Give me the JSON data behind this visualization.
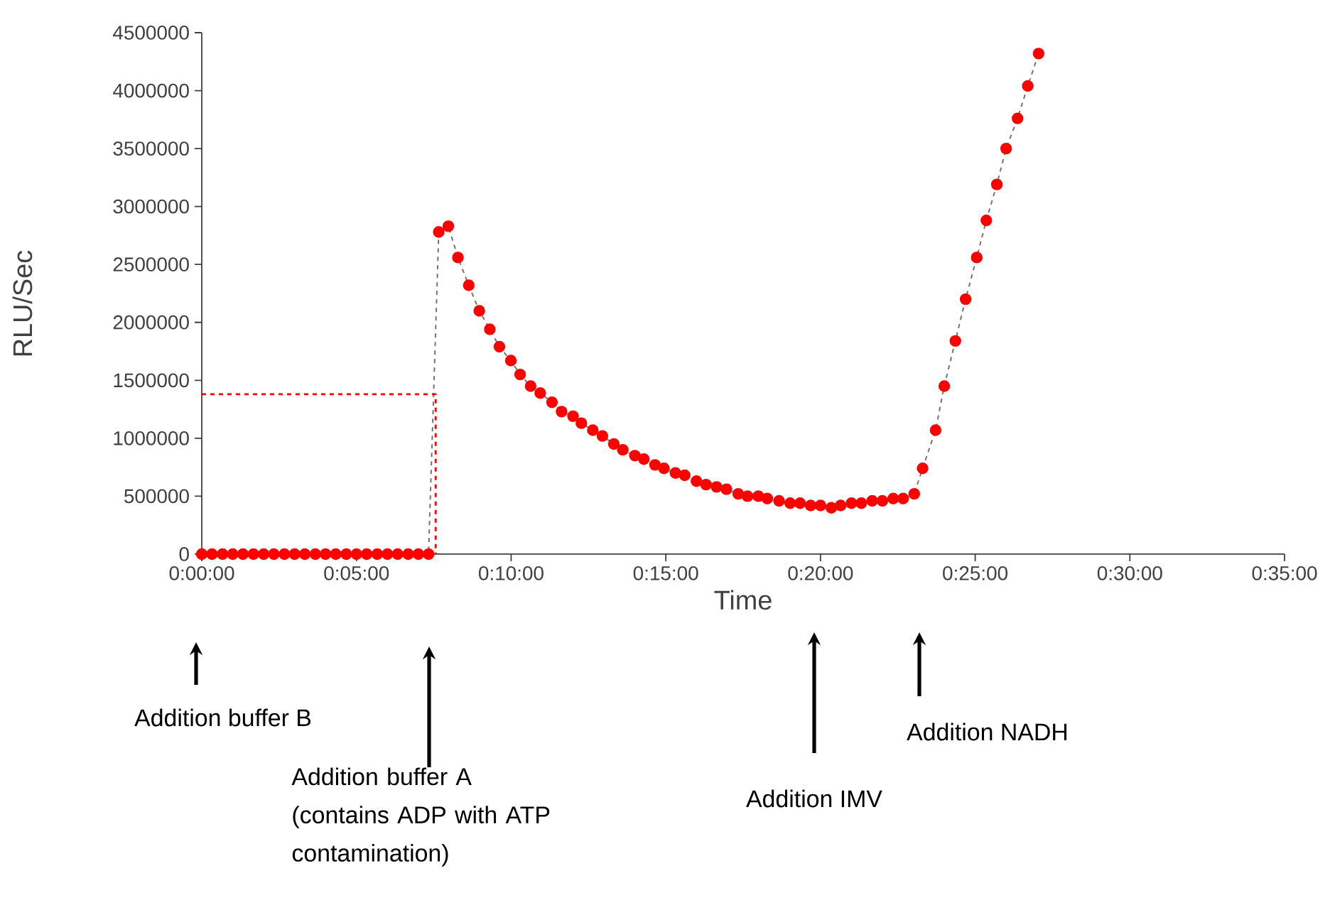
{
  "chart_data": {
    "type": "line",
    "xlabel": "Time",
    "ylabel": "RLU/Sec",
    "xlim": [
      0,
      35
    ],
    "ylim": [
      0,
      4500000
    ],
    "xticks": [
      {
        "value": 0,
        "label": "0:00:00"
      },
      {
        "value": 5,
        "label": "0:05:00"
      },
      {
        "value": 10,
        "label": "0:10:00"
      },
      {
        "value": 15,
        "label": "0:15:00"
      },
      {
        "value": 20,
        "label": "0:20:00"
      },
      {
        "value": 25,
        "label": "0:25:00"
      },
      {
        "value": 30,
        "label": "0:30:00"
      },
      {
        "value": 35,
        "label": "0:35:00"
      }
    ],
    "yticks": [
      0,
      500000,
      1000000,
      1500000,
      2000000,
      2500000,
      3000000,
      3500000,
      4000000,
      4500000
    ],
    "grid": false,
    "series": [
      {
        "color": "#ff0000",
        "marker": "circle",
        "line_style": "dashed",
        "x": [
          0,
          0.33,
          0.67,
          1,
          1.33,
          1.67,
          2,
          2.33,
          2.67,
          3,
          3.33,
          3.67,
          4,
          4.33,
          4.67,
          5,
          5.33,
          5.67,
          6,
          6.33,
          6.67,
          7,
          7.33,
          7.66,
          7.97,
          8.28,
          8.63,
          8.97,
          9.31,
          9.62,
          9.99,
          10.29,
          10.63,
          10.94,
          11.32,
          11.63,
          12.0,
          12.27,
          12.64,
          12.95,
          13.32,
          13.61,
          14.0,
          14.29,
          14.65,
          14.94,
          15.31,
          15.61,
          15.99,
          16.3,
          16.64,
          16.96,
          17.34,
          17.64,
          17.99,
          18.28,
          18.66,
          19.02,
          19.34,
          19.68,
          20.0,
          20.35,
          20.65,
          21.0,
          21.32,
          21.67,
          22.0,
          22.35,
          22.67,
          23.03,
          23.3,
          23.72,
          24.0,
          24.36,
          24.69,
          25.05,
          25.36,
          25.7,
          26.0,
          26.37,
          26.7,
          27.05
        ],
        "values": [
          0,
          0,
          0,
          0,
          0,
          0,
          0,
          0,
          0,
          0,
          0,
          0,
          0,
          0,
          0,
          0,
          0,
          0,
          0,
          0,
          0,
          0,
          0,
          2780000,
          2830000,
          2560000,
          2320000,
          2100000,
          1940000,
          1790000,
          1670000,
          1550000,
          1450000,
          1390000,
          1310000,
          1230000,
          1190000,
          1130000,
          1070000,
          1020000,
          950000,
          900000,
          850000,
          820000,
          770000,
          740000,
          700000,
          680000,
          630000,
          600000,
          580000,
          560000,
          520000,
          500000,
          500000,
          480000,
          460000,
          440000,
          440000,
          420000,
          420000,
          400000,
          420000,
          440000,
          440000,
          460000,
          460000,
          480000,
          480000,
          520000,
          740000,
          1070000,
          1450000,
          1840000,
          2200000,
          2560000,
          2880000,
          3190000,
          3500000,
          3760000,
          4040000,
          4320000
        ]
      },
      {
        "color": "#ff0000",
        "marker": "none",
        "line_style": "dashed",
        "x": [
          0,
          7.56,
          7.56
        ],
        "values": [
          1380000,
          1380000,
          0
        ]
      }
    ],
    "annotations": [
      "Addition buffer B",
      "Addition buffer A (contains ADP with ATP contamination)",
      "Addition IMV",
      "Addition NADH"
    ]
  }
}
